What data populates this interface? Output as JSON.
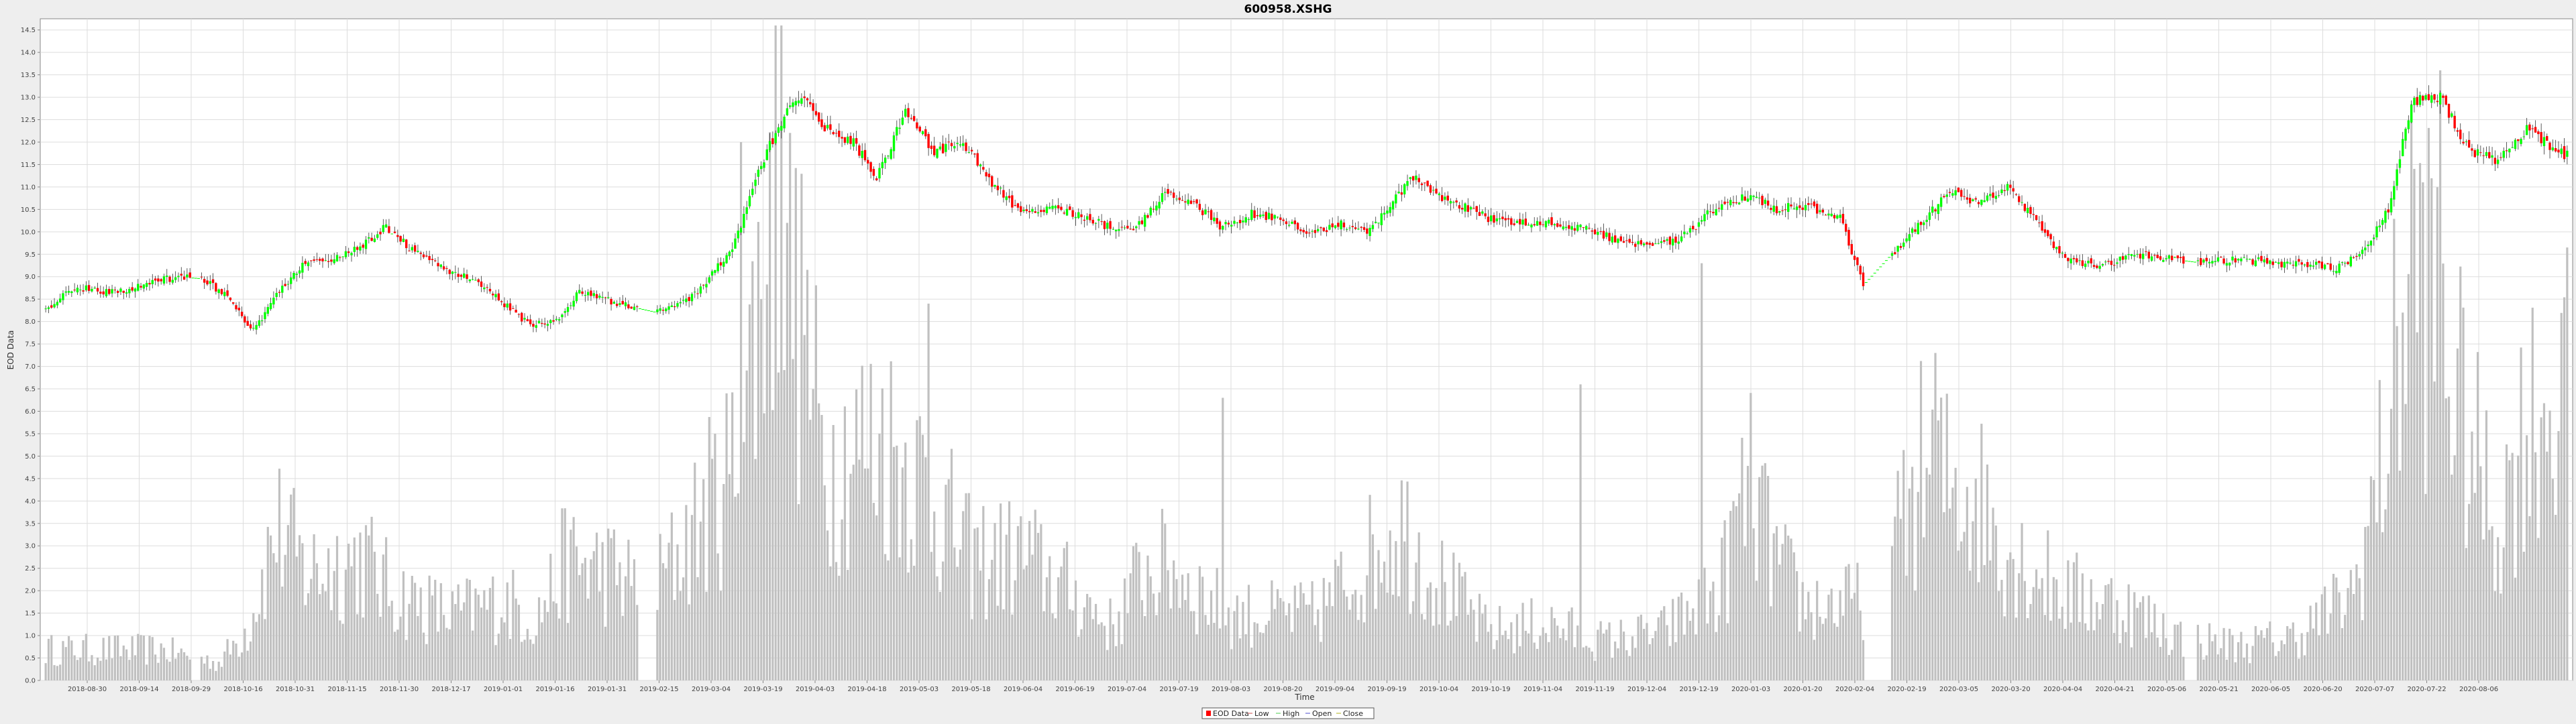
{
  "chart_data": {
    "type": "candlestick",
    "title": "600958.XSHG",
    "xlabel": "Time",
    "ylabel": "EOD Data",
    "ylim": [
      0,
      14.6
    ],
    "yticks": [
      0.0,
      0.5,
      1.0,
      1.5,
      2.0,
      2.5,
      3.0,
      3.5,
      4.0,
      4.5,
      5.0,
      5.5,
      6.0,
      6.5,
      7.0,
      7.5,
      8.0,
      8.5,
      9.0,
      9.5,
      10.0,
      10.5,
      11.0,
      11.5,
      12.0,
      12.5,
      13.0,
      13.5,
      14.0,
      14.5
    ],
    "xticks": [
      "2018-08-30",
      "2018-09-14",
      "2018-09-29",
      "2018-10-16",
      "2018-10-31",
      "2018-11-15",
      "2018-11-30",
      "2018-12-17",
      "2019-01-01",
      "2019-01-16",
      "2019-01-31",
      "2019-02-15",
      "2019-03-04",
      "2019-03-19",
      "2019-04-03",
      "2019-04-18",
      "2019-05-03",
      "2019-05-18",
      "2019-06-04",
      "2019-06-19",
      "2019-07-04",
      "2019-07-19",
      "2019-08-03",
      "2019-08-20",
      "2019-09-04",
      "2019-09-19",
      "2019-10-04",
      "2019-10-19",
      "2019-11-04",
      "2019-11-19",
      "2019-12-04",
      "2019-12-19",
      "2020-01-03",
      "2020-01-20",
      "2020-02-04",
      "2020-02-19",
      "2020-03-05",
      "2020-03-20",
      "2020-04-04",
      "2020-04-21",
      "2020-05-06",
      "2020-05-21",
      "2020-06-05",
      "2020-06-20",
      "2020-07-07",
      "2020-07-22",
      "2020-08-06"
    ],
    "grid": true,
    "legend_position": "bottom-center",
    "legend": [
      "EOD Data",
      "Low",
      "High",
      "Open",
      "Close"
    ],
    "colors": {
      "up": "#00ff00",
      "down": "#ff0000",
      "volume": "#c0c0c0",
      "grid": "#dddddd",
      "plot_bg": "#ffffff",
      "wick": "#000000"
    },
    "price_anchors": [
      [
        0,
        8.3
      ],
      [
        10,
        8.75
      ],
      [
        25,
        8.65
      ],
      [
        45,
        9.0
      ],
      [
        55,
        8.95
      ],
      [
        62,
        8.6
      ],
      [
        72,
        7.8
      ],
      [
        80,
        8.6
      ],
      [
        90,
        9.3
      ],
      [
        105,
        9.5
      ],
      [
        118,
        10.1
      ],
      [
        125,
        9.7
      ],
      [
        135,
        9.3
      ],
      [
        148,
        8.9
      ],
      [
        160,
        8.35
      ],
      [
        168,
        7.9
      ],
      [
        178,
        8.1
      ],
      [
        185,
        8.7
      ],
      [
        198,
        8.4
      ],
      [
        212,
        8.2
      ],
      [
        225,
        8.6
      ],
      [
        238,
        9.6
      ],
      [
        248,
        11.5
      ],
      [
        256,
        12.6
      ],
      [
        262,
        13.1
      ],
      [
        270,
        12.3
      ],
      [
        280,
        12.0
      ],
      [
        288,
        11.2
      ],
      [
        298,
        12.7
      ],
      [
        308,
        11.8
      ],
      [
        318,
        12.0
      ],
      [
        328,
        11.1
      ],
      [
        338,
        10.4
      ],
      [
        350,
        10.5
      ],
      [
        362,
        10.3
      ],
      [
        372,
        10.0
      ],
      [
        380,
        10.2
      ],
      [
        388,
        10.9
      ],
      [
        398,
        10.6
      ],
      [
        408,
        10.1
      ],
      [
        418,
        10.4
      ],
      [
        428,
        10.3
      ],
      [
        438,
        9.9
      ],
      [
        448,
        10.2
      ],
      [
        458,
        10.0
      ],
      [
        466,
        10.6
      ],
      [
        474,
        11.2
      ],
      [
        482,
        10.8
      ],
      [
        490,
        10.6
      ],
      [
        500,
        10.3
      ],
      [
        512,
        10.2
      ],
      [
        524,
        10.2
      ],
      [
        536,
        10.0
      ],
      [
        546,
        9.8
      ],
      [
        556,
        9.7
      ],
      [
        566,
        9.8
      ],
      [
        578,
        10.5
      ],
      [
        590,
        10.8
      ],
      [
        600,
        10.5
      ],
      [
        610,
        10.6
      ],
      [
        622,
        10.3
      ],
      [
        630,
        8.8
      ],
      [
        640,
        9.5
      ],
      [
        650,
        10.2
      ],
      [
        660,
        10.9
      ],
      [
        670,
        10.6
      ],
      [
        680,
        11.0
      ],
      [
        690,
        10.2
      ],
      [
        700,
        9.4
      ],
      [
        712,
        9.2
      ],
      [
        724,
        9.5
      ],
      [
        736,
        9.4
      ],
      [
        748,
        9.3
      ],
      [
        760,
        9.4
      ],
      [
        772,
        9.3
      ],
      [
        784,
        9.3
      ],
      [
        794,
        9.2
      ],
      [
        804,
        9.6
      ],
      [
        812,
        10.5
      ],
      [
        820,
        12.9
      ],
      [
        830,
        13.0
      ],
      [
        840,
        11.8
      ],
      [
        850,
        11.6
      ],
      [
        860,
        12.3
      ],
      [
        868,
        11.9
      ],
      [
        874,
        11.7
      ]
    ],
    "gaps": [
      [
        51,
        54
      ],
      [
        206,
        212
      ],
      [
        631,
        640
      ],
      [
        742,
        746
      ]
    ],
    "volume_anchors": [
      [
        0,
        0.7
      ],
      [
        40,
        0.7
      ],
      [
        60,
        0.4
      ],
      [
        70,
        1.2
      ],
      [
        80,
        3.5
      ],
      [
        90,
        2.5
      ],
      [
        110,
        2.8
      ],
      [
        120,
        2.0
      ],
      [
        140,
        1.5
      ],
      [
        160,
        1.8
      ],
      [
        170,
        1.4
      ],
      [
        180,
        2.7
      ],
      [
        195,
        2.5
      ],
      [
        210,
        2.0
      ],
      [
        238,
        4.8
      ],
      [
        246,
        8.0
      ],
      [
        252,
        11.0
      ],
      [
        260,
        8.5
      ],
      [
        270,
        5.0
      ],
      [
        290,
        5.5
      ],
      [
        305,
        4.5
      ],
      [
        320,
        2.8
      ],
      [
        340,
        2.8
      ],
      [
        360,
        1.8
      ],
      [
        370,
        1.2
      ],
      [
        380,
        2.5
      ],
      [
        390,
        2.6
      ],
      [
        410,
        1.5
      ],
      [
        440,
        1.5
      ],
      [
        470,
        3.6
      ],
      [
        480,
        2.5
      ],
      [
        500,
        1.1
      ],
      [
        520,
        1.3
      ],
      [
        540,
        0.9
      ],
      [
        560,
        1.1
      ],
      [
        580,
        2.0
      ],
      [
        590,
        4.5
      ],
      [
        600,
        2.7
      ],
      [
        610,
        1.7
      ],
      [
        628,
        1.8
      ],
      [
        640,
        2.8
      ],
      [
        650,
        4.8
      ],
      [
        670,
        4.2
      ],
      [
        680,
        3.0
      ],
      [
        700,
        2.0
      ],
      [
        720,
        1.7
      ],
      [
        740,
        1.0
      ],
      [
        760,
        0.8
      ],
      [
        780,
        1.0
      ],
      [
        800,
        2.0
      ],
      [
        810,
        5.0
      ],
      [
        820,
        10.0
      ],
      [
        830,
        8.0
      ],
      [
        840,
        5.5
      ],
      [
        850,
        3.5
      ],
      [
        860,
        6.0
      ],
      [
        874,
        6.5
      ]
    ],
    "volume_spikes": [
      [
        241,
        12.0
      ],
      [
        255,
        15.0
      ],
      [
        257,
        10.2
      ],
      [
        263,
        7.7
      ],
      [
        306,
        8.4
      ],
      [
        408,
        6.3
      ],
      [
        532,
        6.6
      ],
      [
        574,
        9.3
      ],
      [
        655,
        7.3
      ],
      [
        817,
        8.2
      ],
      [
        830,
        13.6
      ]
    ]
  }
}
